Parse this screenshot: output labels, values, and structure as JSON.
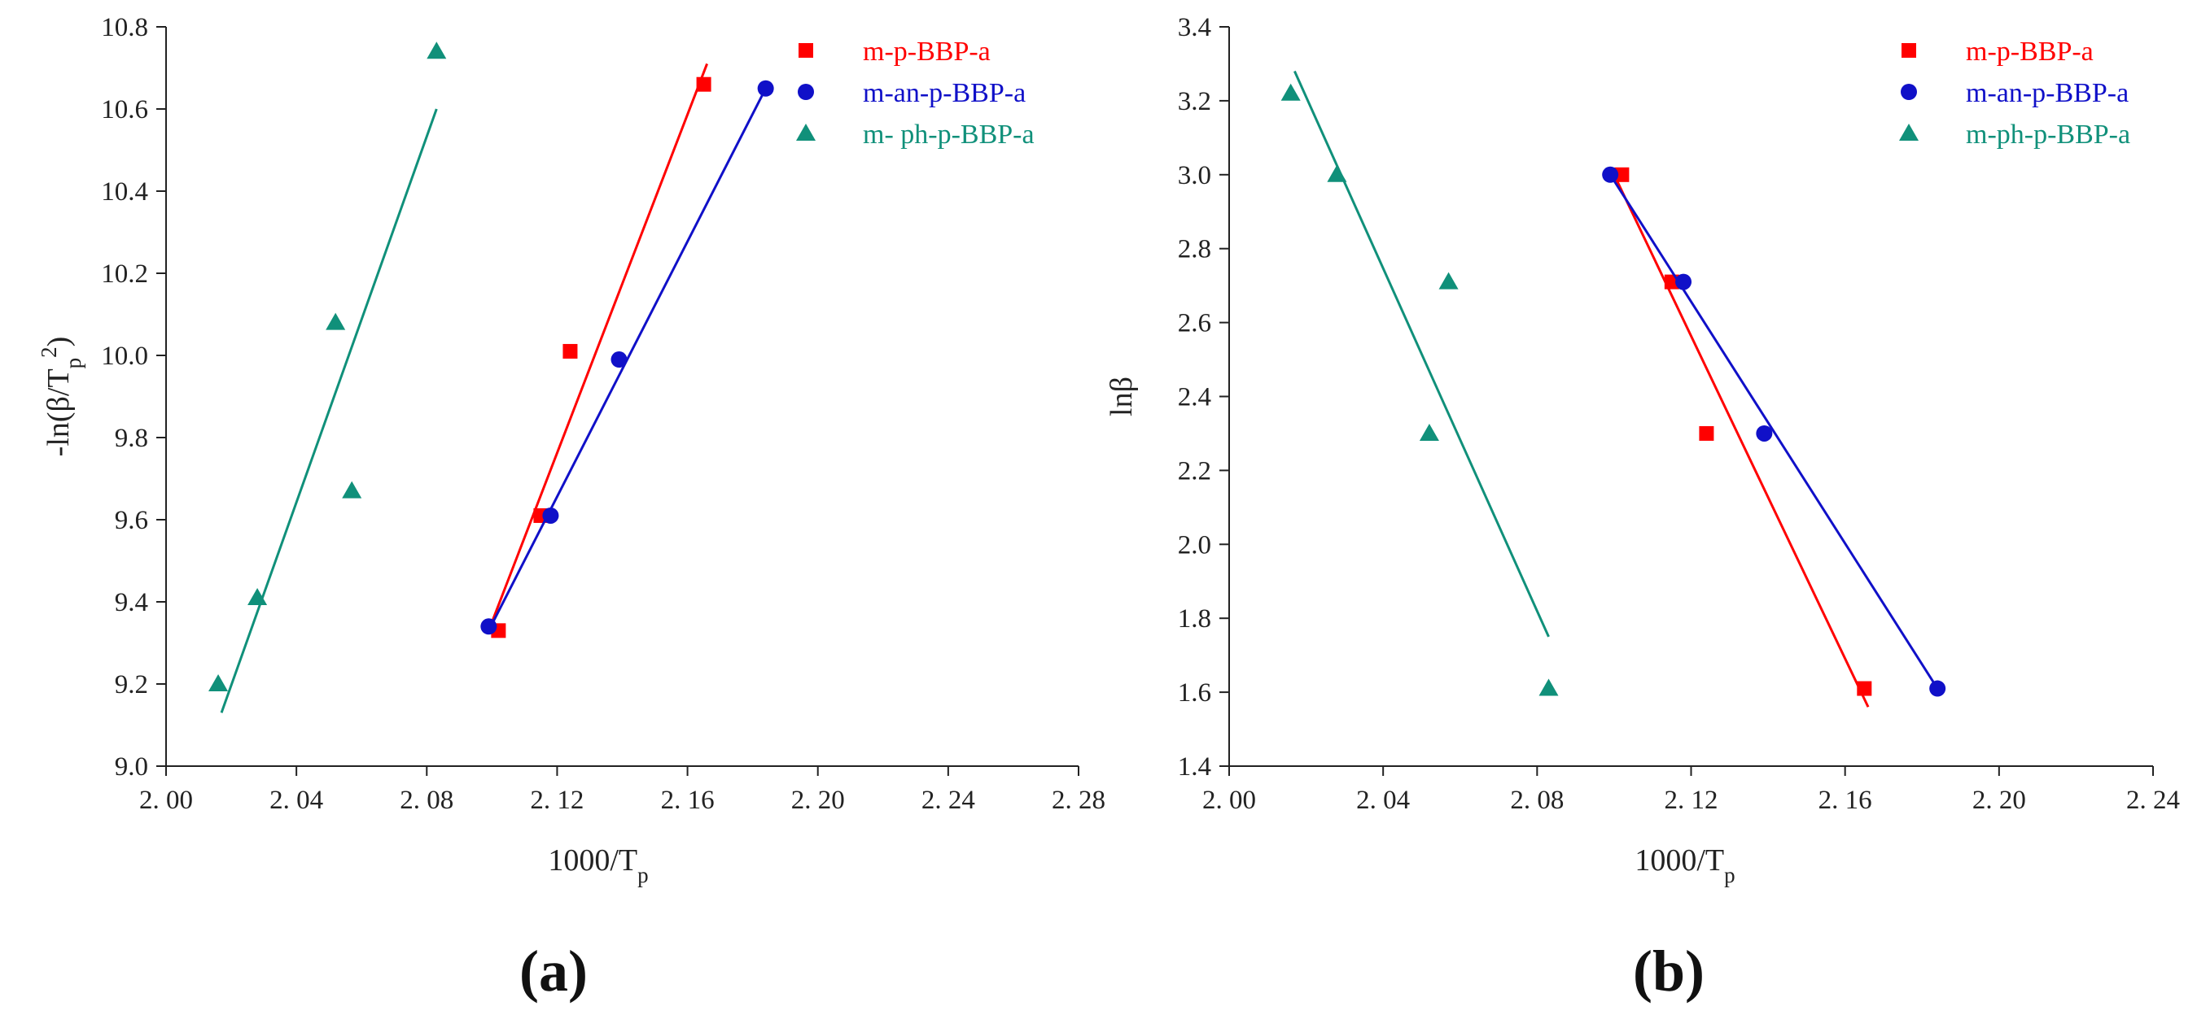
{
  "chart_data": [
    {
      "type": "scatter",
      "panel_label": "(a)",
      "xlabel": {
        "base": "1000/T",
        "sub": "p"
      },
      "ylabel": {
        "pre": "-ln(β/T",
        "sub": "p",
        "sup": "2",
        "post": ")"
      },
      "xlim": [
        2.0,
        2.28
      ],
      "ylim": [
        9.0,
        10.8
      ],
      "xticks": [
        "2.00",
        "2.04",
        "2.08",
        "2.12",
        "2.16",
        "2.20",
        "2.24",
        "2.28"
      ],
      "yticks": [
        "9.0",
        "9.2",
        "9.4",
        "9.6",
        "9.8",
        "10.0",
        "10.2",
        "10.4",
        "10.6",
        "10.8"
      ],
      "legend_position": "top-right",
      "series": [
        {
          "name": "m-p-BBP-a",
          "color": "#ff0000",
          "marker": "square",
          "x": [
            2.102,
            2.115,
            2.124,
            2.165
          ],
          "y": [
            9.33,
            9.61,
            10.01,
            10.66
          ],
          "fit": {
            "x": [
              2.099,
              2.166
            ],
            "y": [
              9.33,
              10.71
            ]
          }
        },
        {
          "name": "m-an-p-BBP-a",
          "color": "#1010c8",
          "marker": "circle",
          "x": [
            2.099,
            2.118,
            2.139,
            2.184
          ],
          "y": [
            9.34,
            9.61,
            9.99,
            10.65
          ],
          "fit": {
            "x": [
              2.099,
              2.184
            ],
            "y": [
              9.33,
              10.65
            ]
          }
        },
        {
          "name": "m- ph-p-BBP-a",
          "color": "#10907a",
          "marker": "triangle",
          "x": [
            2.016,
            2.028,
            2.052,
            2.057,
            2.083
          ],
          "y": [
            9.2,
            9.41,
            10.08,
            9.67,
            10.74
          ],
          "fit": {
            "x": [
              2.017,
              2.083
            ],
            "y": [
              9.13,
              10.6
            ]
          }
        }
      ]
    },
    {
      "type": "scatter",
      "panel_label": "(b)",
      "xlabel": {
        "base": "1000/T",
        "sub": "p"
      },
      "ylabel": {
        "pre": "lnβ",
        "sub": "",
        "sup": "",
        "post": ""
      },
      "xlim": [
        2.0,
        2.24
      ],
      "ylim": [
        1.4,
        3.4
      ],
      "xticks": [
        "2.00",
        "2.04",
        "2.08",
        "2.12",
        "2.16",
        "2.20",
        "2.24"
      ],
      "yticks": [
        "1.4",
        "1.6",
        "1.8",
        "2.0",
        "2.2",
        "2.4",
        "2.6",
        "2.8",
        "3.0",
        "3.2",
        "3.4"
      ],
      "legend_position": "top-right",
      "series": [
        {
          "name": "m-p-BBP-a",
          "color": "#ff0000",
          "marker": "square",
          "x": [
            2.102,
            2.115,
            2.124,
            2.165
          ],
          "y": [
            3.0,
            2.71,
            2.3,
            1.61
          ],
          "fit": {
            "x": [
              2.1,
              2.166
            ],
            "y": [
              3.0,
              1.56
            ]
          }
        },
        {
          "name": "m-an-p-BBP-a",
          "color": "#1010c8",
          "marker": "circle",
          "x": [
            2.099,
            2.118,
            2.139,
            2.184
          ],
          "y": [
            3.0,
            2.71,
            2.3,
            1.61
          ],
          "fit": {
            "x": [
              2.099,
              2.184
            ],
            "y": [
              3.0,
              1.61
            ]
          }
        },
        {
          "name": "m-ph-p-BBP-a",
          "color": "#10907a",
          "marker": "triangle",
          "x": [
            2.016,
            2.028,
            2.052,
            2.057,
            2.083
          ],
          "y": [
            3.22,
            3.0,
            2.3,
            2.71,
            1.61
          ],
          "fit": {
            "x": [
              2.017,
              2.083
            ],
            "y": [
              3.28,
              1.75
            ]
          }
        }
      ]
    }
  ]
}
